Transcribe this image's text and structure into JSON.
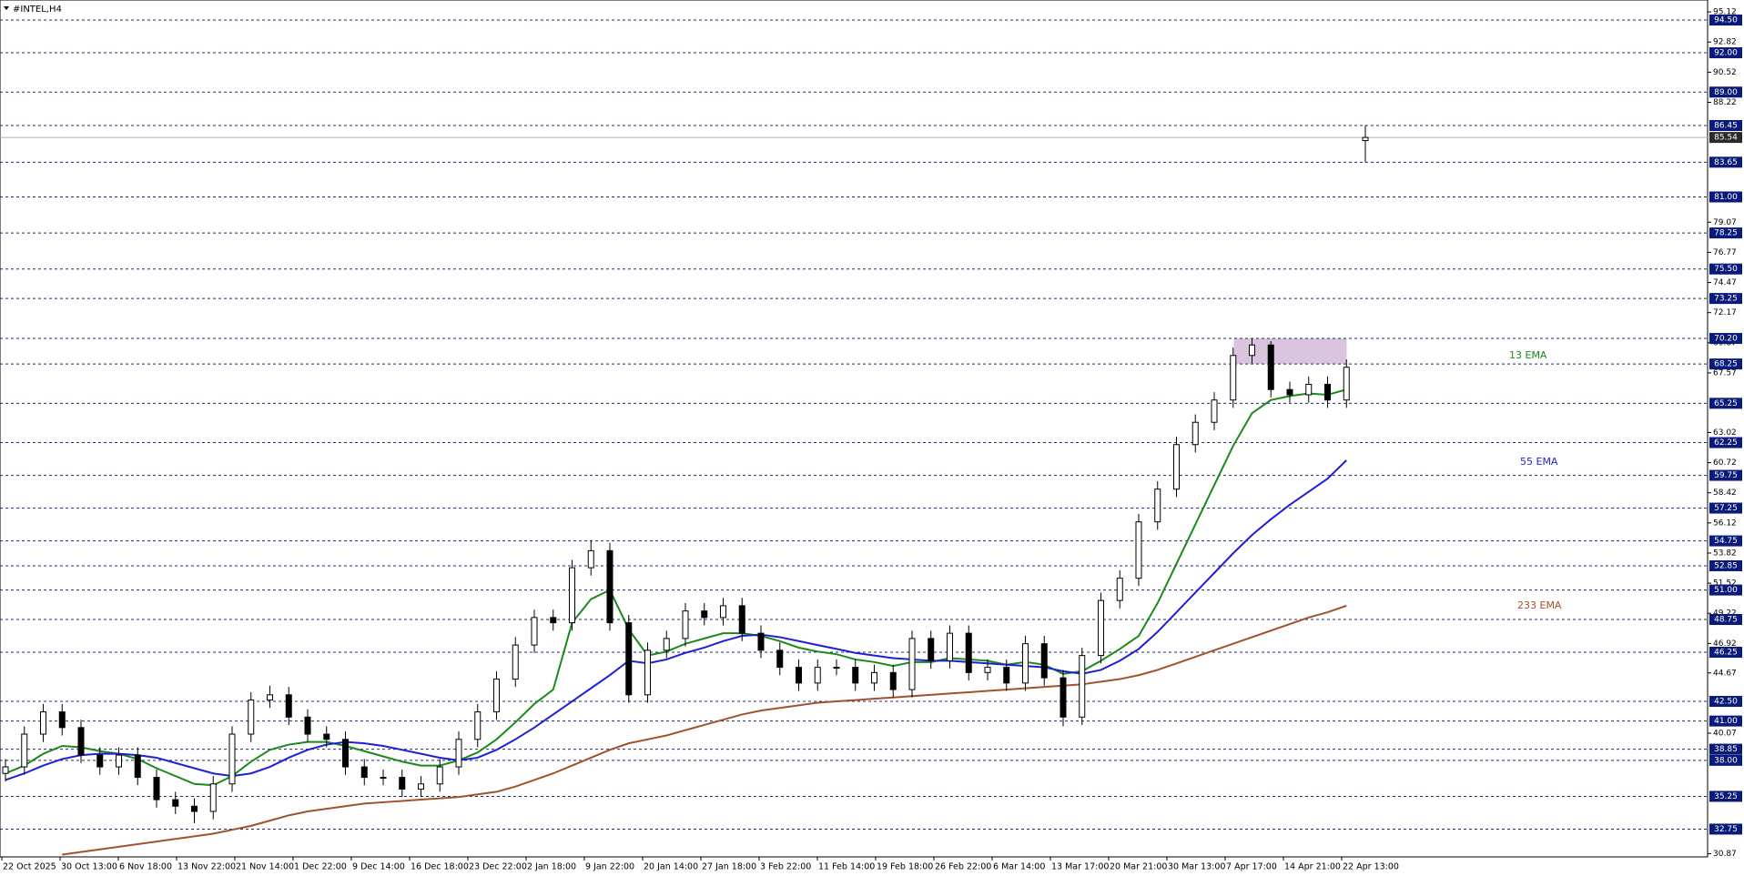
{
  "chart_data": {
    "type": "candlestick",
    "title": "#INTEL,H4",
    "ylim": [
      30.63,
      96.03
    ],
    "yticks": [
      95.12,
      92.82,
      90.52,
      88.22,
      79.07,
      76.77,
      74.47,
      72.17,
      69.87,
      67.57,
      63.02,
      60.72,
      58.42,
      56.12,
      53.82,
      51.52,
      49.22,
      46.92,
      44.67,
      40.07,
      30.87
    ],
    "levels": [
      {
        "value": 94.5,
        "label": "94.50"
      },
      {
        "value": 92,
        "label": "92.00"
      },
      {
        "value": 89,
        "label": "89.00"
      },
      86.45,
      83.65,
      {
        "value": 81,
        "label": "81.00"
      },
      78.25,
      {
        "value": 75.5,
        "label": "75.50"
      },
      73.25,
      {
        "value": 70.2,
        "label": "70.20"
      },
      68.25,
      65.25,
      62.25,
      59.75,
      57.25,
      54.75,
      52.85,
      {
        "value": 51,
        "label": "51.00"
      },
      48.75,
      46.25,
      {
        "value": 42.5,
        "label": "42.50"
      },
      {
        "value": 41,
        "label": "41.00"
      },
      38.85,
      {
        "value": 38,
        "label": "38.00"
      },
      35.25,
      32.75
    ],
    "bid": 85.54,
    "zone": {
      "low": 68.25,
      "high": 70.2,
      "color": "#d9c3dd"
    },
    "time_labels": [
      "22 Oct 2025",
      "30 Oct 13:00",
      "6 Nov 18:00",
      "13 Nov 22:00",
      "21 Nov 14:00",
      "1 Dec 22:00",
      "9 Dec 14:00",
      "16 Dec 18:00",
      "23 Dec 22:00",
      "2 Jan 18:00",
      "9 Jan 22:00",
      "20 Jan 14:00",
      "27 Jan 18:00",
      "3 Feb 22:00",
      "11 Feb 14:00",
      "19 Feb 18:00",
      "26 Feb 22:00",
      "6 Mar 14:00",
      "13 Mar 17:00",
      "20 Mar 21:00",
      "30 Mar 13:00",
      "7 Apr 17:00",
      "14 Apr 21:00",
      "22 Apr 13:00"
    ],
    "candles": {
      "open": [
        37.0,
        37.5,
        40.0,
        41.7,
        40.5,
        38.4,
        37.5,
        38.4,
        36.7,
        35.0,
        34.5,
        34.1,
        36.2,
        40.0,
        42.6,
        43.0,
        41.3,
        40.0,
        39.6,
        37.5,
        36.7,
        36.7,
        35.8,
        36.2,
        37.5,
        39.6,
        41.7,
        44.2,
        46.8,
        48.9,
        48.5,
        52.7,
        54.0,
        48.5,
        43.0,
        46.4,
        47.3,
        49.4,
        48.9,
        49.8,
        47.7,
        46.4,
        45.1,
        43.9,
        45.1,
        45.1,
        43.9,
        44.7,
        43.4,
        47.3,
        45.6,
        47.7,
        44.7,
        45.1,
        43.9,
        46.9,
        44.3,
        41.3,
        46.0,
        50.2,
        51.9,
        56.2,
        58.7,
        62.1,
        63.8,
        65.5,
        68.9,
        69.7,
        66.3,
        65.9,
        66.7,
        65.5,
        85.3
      ],
      "high": [
        38.1,
        40.6,
        42.3,
        42.3,
        41.1,
        39.0,
        39.0,
        39.0,
        37.3,
        35.6,
        35.1,
        36.8,
        40.6,
        43.2,
        43.7,
        43.6,
        41.9,
        40.6,
        40.2,
        38.1,
        37.3,
        37.3,
        36.8,
        38.1,
        40.2,
        42.3,
        44.8,
        47.4,
        49.5,
        49.5,
        53.3,
        54.8,
        54.6,
        49.1,
        47.0,
        47.9,
        50.0,
        50.0,
        50.4,
        50.4,
        48.3,
        47.0,
        45.7,
        45.7,
        45.7,
        45.7,
        45.3,
        45.3,
        47.9,
        47.9,
        48.3,
        48.3,
        45.7,
        45.7,
        47.5,
        47.5,
        44.9,
        46.6,
        50.8,
        52.5,
        56.8,
        59.3,
        62.7,
        64.4,
        66.1,
        69.5,
        70.2,
        70.0,
        66.9,
        67.3,
        67.3,
        68.6,
        86.45
      ],
      "low": [
        36.4,
        36.9,
        39.4,
        39.9,
        37.8,
        36.9,
        36.9,
        36.1,
        34.4,
        33.9,
        33.2,
        33.5,
        35.6,
        39.4,
        42.0,
        40.7,
        39.4,
        39.0,
        36.9,
        36.1,
        36.1,
        35.2,
        35.2,
        35.6,
        36.9,
        39.0,
        41.1,
        43.6,
        46.2,
        47.9,
        47.9,
        52.1,
        47.9,
        42.4,
        42.4,
        45.8,
        46.7,
        48.3,
        48.3,
        47.1,
        45.8,
        44.5,
        43.3,
        43.3,
        44.5,
        43.3,
        43.3,
        42.8,
        42.8,
        45.0,
        45.0,
        44.1,
        44.1,
        43.3,
        43.3,
        43.7,
        40.6,
        40.7,
        45.4,
        49.6,
        51.3,
        55.6,
        58.1,
        61.5,
        63.2,
        64.9,
        68.3,
        65.7,
        65.3,
        65.3,
        64.9,
        64.9,
        83.65
      ],
      "close": [
        37.5,
        40.0,
        41.7,
        40.5,
        38.4,
        37.5,
        38.4,
        36.7,
        35.0,
        34.5,
        34.1,
        36.2,
        40.0,
        42.6,
        43.0,
        41.3,
        40.0,
        39.6,
        37.5,
        36.7,
        36.7,
        35.8,
        36.2,
        37.5,
        39.6,
        41.7,
        44.2,
        46.8,
        48.9,
        48.5,
        52.7,
        54.0,
        48.5,
        43.0,
        46.4,
        47.3,
        49.4,
        48.9,
        49.8,
        47.7,
        46.4,
        45.1,
        43.9,
        45.1,
        45.1,
        43.9,
        44.7,
        43.4,
        47.3,
        45.6,
        47.7,
        44.7,
        45.1,
        43.9,
        46.9,
        44.3,
        41.3,
        46.0,
        50.2,
        51.9,
        56.2,
        58.7,
        62.1,
        63.8,
        65.5,
        68.9,
        69.7,
        66.3,
        65.9,
        66.7,
        65.5,
        68.0,
        85.54
      ]
    },
    "series": [
      {
        "name": "13 EMA",
        "color": "#1b8a1b",
        "values": [
          37.0,
          37.6,
          38.5,
          39.1,
          39.0,
          38.7,
          38.5,
          38.1,
          37.4,
          36.8,
          36.2,
          36.1,
          36.8,
          37.9,
          38.8,
          39.2,
          39.4,
          39.4,
          39.1,
          38.7,
          38.3,
          37.9,
          37.6,
          37.6,
          38.0,
          38.6,
          39.6,
          40.9,
          42.3,
          43.4,
          48.5,
          50.3,
          51.0,
          48.0,
          46.0,
          46.3,
          46.9,
          47.3,
          47.7,
          47.7,
          47.5,
          47.1,
          46.6,
          46.3,
          46.1,
          45.7,
          45.5,
          45.2,
          45.5,
          45.5,
          45.8,
          45.7,
          45.6,
          45.3,
          45.5,
          45.3,
          44.6,
          44.8,
          45.6,
          46.5,
          47.5,
          50.0,
          53.0,
          56.0,
          59.0,
          62.0,
          64.5,
          65.5,
          65.8,
          66.0,
          65.9,
          66.3,
          null
        ]
      },
      {
        "name": "55 EMA",
        "color": "#1f1fd6",
        "values": [
          36.5,
          37.0,
          37.6,
          38.1,
          38.4,
          38.5,
          38.5,
          38.4,
          38.2,
          37.8,
          37.4,
          37.0,
          36.8,
          37.0,
          37.5,
          38.2,
          38.8,
          39.2,
          39.4,
          39.3,
          39.1,
          38.8,
          38.5,
          38.2,
          38.0,
          38.2,
          38.8,
          39.6,
          40.5,
          41.5,
          42.5,
          43.5,
          44.5,
          45.6,
          45.4,
          45.7,
          46.2,
          46.6,
          47.1,
          47.5,
          47.6,
          47.4,
          47.1,
          46.8,
          46.5,
          46.2,
          46.0,
          45.8,
          45.7,
          45.6,
          45.6,
          45.5,
          45.4,
          45.3,
          45.2,
          45.1,
          44.8,
          44.6,
          44.9,
          45.6,
          46.5,
          47.8,
          49.3,
          50.8,
          52.3,
          53.8,
          55.2,
          56.4,
          57.5,
          58.5,
          59.5,
          60.9,
          null
        ]
      },
      {
        "name": "233 EMA",
        "color": "#a0522d",
        "values": [
          null,
          null,
          null,
          30.8,
          31.0,
          31.2,
          31.4,
          31.6,
          31.8,
          32.0,
          32.2,
          32.4,
          32.7,
          33.0,
          33.4,
          33.8,
          34.1,
          34.3,
          34.5,
          34.7,
          34.8,
          34.9,
          35.0,
          35.1,
          35.2,
          35.4,
          35.6,
          36.0,
          36.5,
          37.0,
          37.6,
          38.2,
          38.8,
          39.3,
          39.6,
          39.9,
          40.3,
          40.7,
          41.1,
          41.5,
          41.8,
          42.0,
          42.2,
          42.4,
          42.5,
          42.6,
          42.7,
          42.8,
          42.9,
          43.0,
          43.1,
          43.2,
          43.3,
          43.4,
          43.5,
          43.6,
          43.7,
          43.8,
          44.0,
          44.2,
          44.5,
          44.9,
          45.4,
          45.9,
          46.4,
          46.9,
          47.4,
          47.9,
          48.4,
          48.9,
          49.3,
          49.8,
          null
        ]
      }
    ]
  }
}
